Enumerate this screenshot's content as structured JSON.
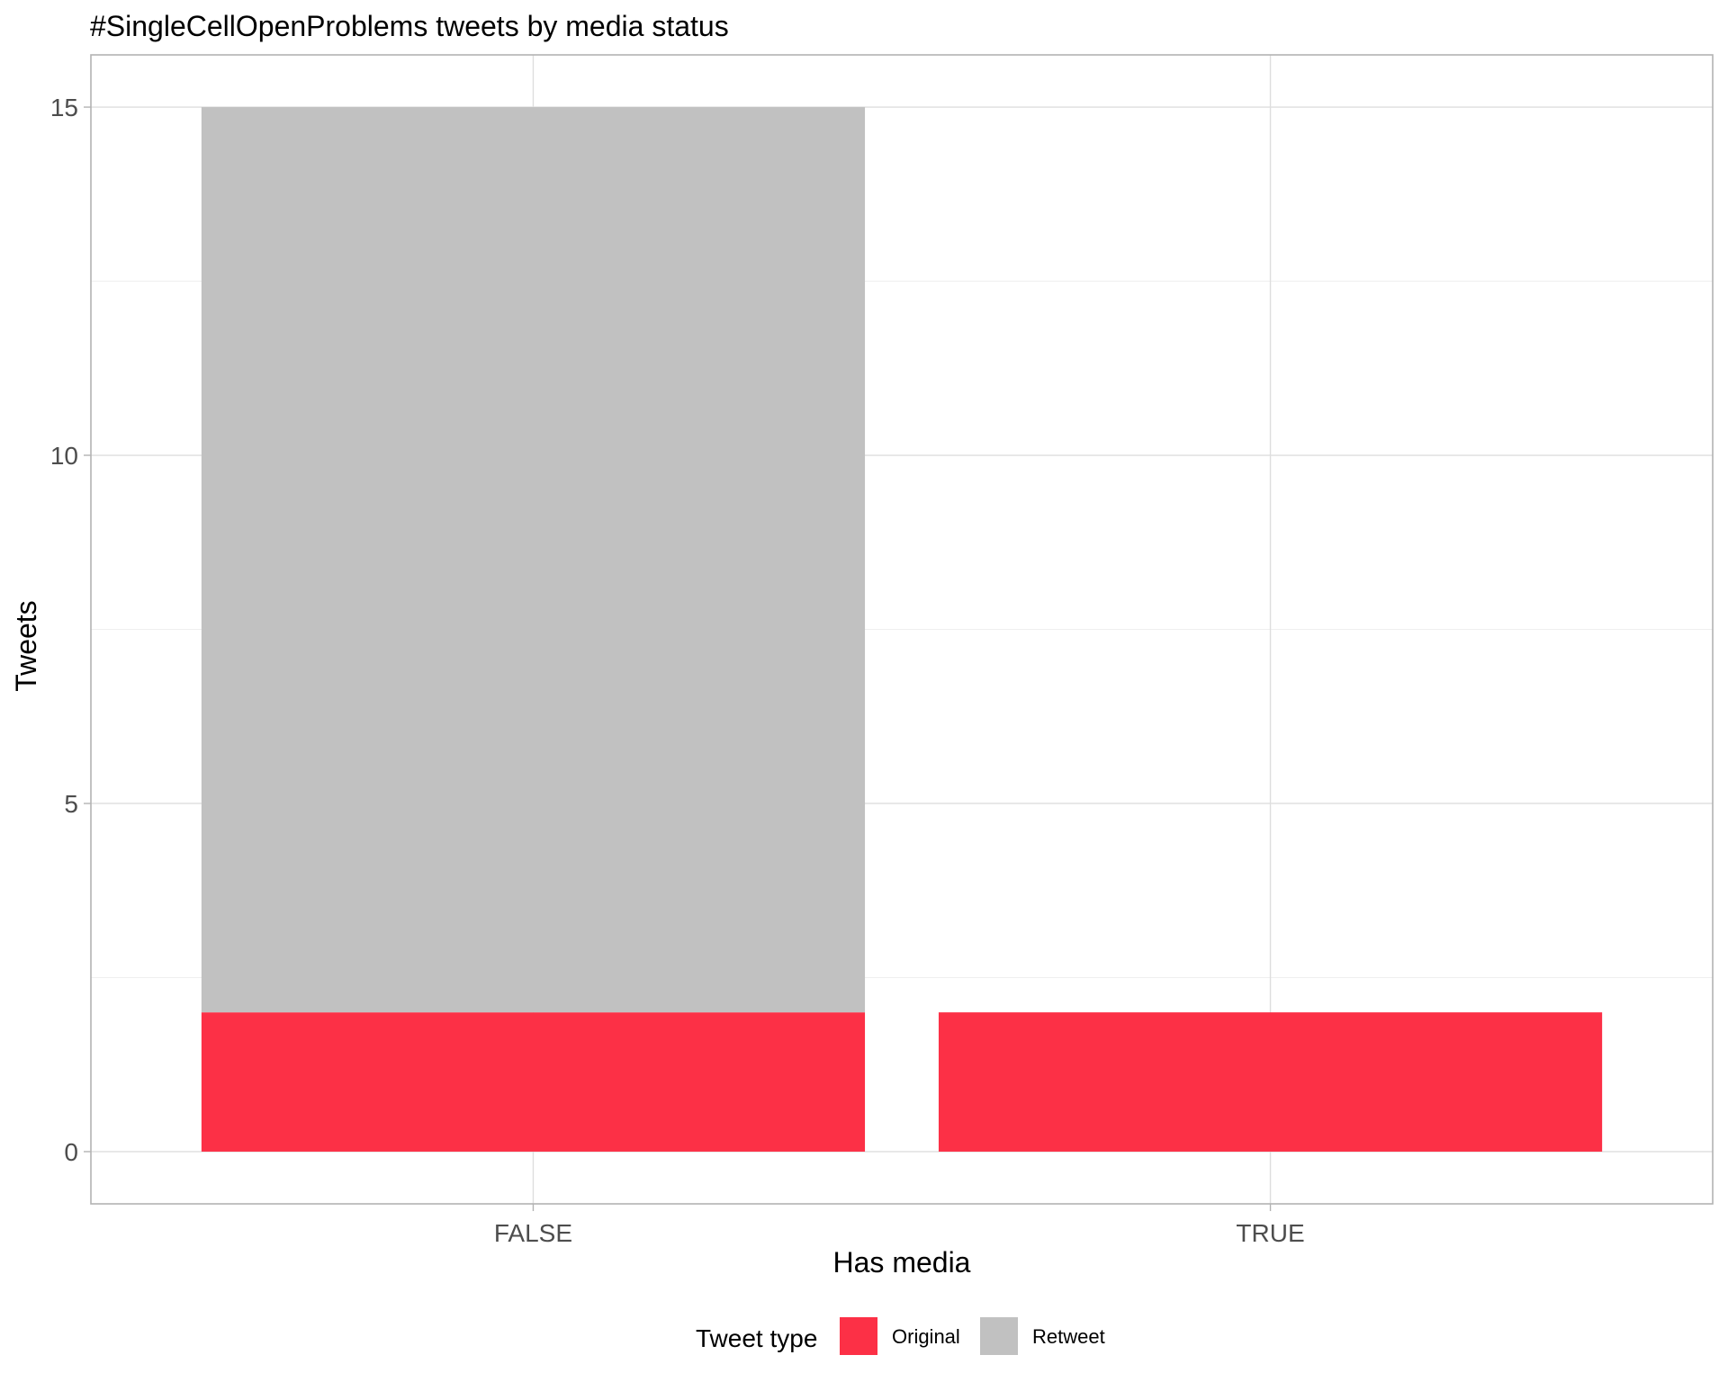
{
  "chart_data": {
    "type": "bar",
    "stacked": true,
    "title": "#SingleCellOpenProblems tweets by media status",
    "xlabel": "Has media",
    "ylabel": "Tweets",
    "categories": [
      "FALSE",
      "TRUE"
    ],
    "series": [
      {
        "name": "Original",
        "color": "#FC3046",
        "values": [
          2,
          2
        ]
      },
      {
        "name": "Retweet",
        "color": "#C1C1C1",
        "values": [
          13,
          0
        ]
      }
    ],
    "ylim": [
      -0.75,
      15.75
    ],
    "y_ticks": [
      0,
      5,
      10,
      15
    ],
    "y_tick_labels": [
      "0",
      "5",
      "10",
      "15"
    ],
    "y_minor_ticks": [
      2.5,
      7.5,
      12.5
    ],
    "grid": true,
    "legend": {
      "title": "Tweet type",
      "position": "bottom",
      "entries": [
        "Original",
        "Retweet"
      ]
    }
  },
  "colors": {
    "grid_major": "#DEDEDE",
    "grid_minor": "#EFEFEF",
    "panel_border": "#B3B3B3",
    "tick": "#B3B3B3"
  }
}
